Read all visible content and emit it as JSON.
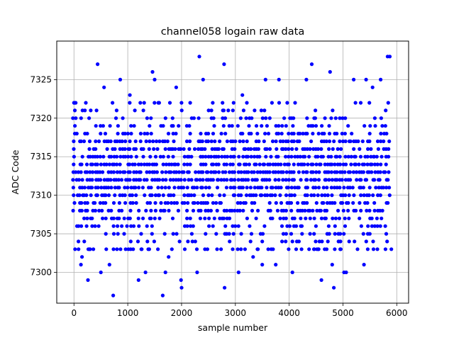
{
  "chart_data": {
    "type": "scatter",
    "title": "channel058 logain raw data",
    "xlabel": "sample number",
    "ylabel": "ADC Code",
    "xlim": [
      -320,
      6220
    ],
    "ylim": [
      7296,
      7330
    ],
    "xticks": [
      0,
      1000,
      2000,
      3000,
      4000,
      5000,
      6000
    ],
    "yticks": [
      7300,
      7305,
      7310,
      7315,
      7320,
      7325
    ],
    "grid": true,
    "marker_color": "#0000ff",
    "n_samples": 5900,
    "sample_step": 50,
    "dense_band": [
      7303,
      7322
    ],
    "series": [
      {
        "x": [
          0,
          20,
          130,
          150,
          220,
          260,
          300,
          360,
          440,
          500,
          560,
          600,
          660,
          730,
          800,
          860,
          960,
          1040,
          1100,
          1200,
          1260,
          1330,
          1400,
          1460,
          1500,
          1560,
          1650,
          1700,
          1760,
          1820,
          1900,
          1990,
          2000,
          2060,
          2160,
          2290,
          2330,
          2400,
          2480,
          2580,
          2660,
          2790,
          2800,
          2950,
          3060,
          3130,
          3180,
          3330,
          3410,
          3500,
          3560,
          3610,
          3680,
          3750,
          3810,
          3990,
          4060,
          4110,
          4230,
          4320,
          4370,
          4420,
          4460,
          4540,
          4600,
          4660,
          4760,
          4800,
          4830,
          4960,
          5020,
          5060,
          5200,
          5270,
          5330,
          5390,
          5430,
          5460,
          5550,
          5640,
          5700,
          5790,
          5830,
          5870,
          5900
        ],
        "y": [
          7322,
          7303,
          7301,
          7302,
          7322,
          7299,
          7303,
          7303,
          7327,
          7300,
          7324,
          7303,
          7301,
          7297,
          7303,
          7325,
          7303,
          7323,
          7303,
          7299,
          7303,
          7300,
          7303,
          7326,
          7325,
          7303,
          7297,
          7300,
          7302,
          7303,
          7324,
          7299,
          7298,
          7303,
          7322,
          7300,
          7328,
          7325,
          7303,
          7322,
          7303,
          7327,
          7298,
          7303,
          7300,
          7323,
          7303,
          7302,
          7303,
          7301,
          7325,
          7303,
          7322,
          7301,
          7325,
          7303,
          7300,
          7322,
          7303,
          7325,
          7303,
          7327,
          7303,
          7303,
          7299,
          7303,
          7326,
          7301,
          7298,
          7303,
          7300,
          7300,
          7325,
          7303,
          7322,
          7301,
          7325,
          7303,
          7324,
          7303,
          7325,
          7303,
          7328,
          7328,
          7303
        ]
      }
    ]
  }
}
